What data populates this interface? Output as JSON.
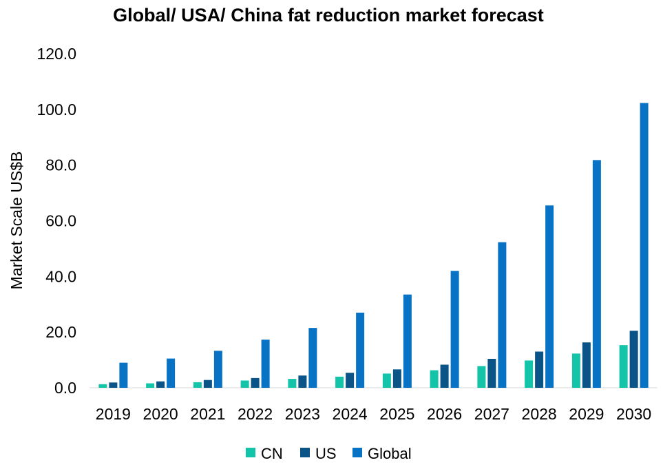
{
  "chart_data": {
    "type": "bar",
    "title": "Global/ USA/ China fat reduction market forecast",
    "xlabel": "",
    "ylabel": "Market Scale US$B",
    "ylim": [
      0,
      120
    ],
    "yticks": [
      "0.0",
      "20.0",
      "40.0",
      "60.0",
      "80.0",
      "100.0",
      "120.0"
    ],
    "grid": false,
    "legend_position": "bottom",
    "categories": [
      "2019",
      "2020",
      "2021",
      "2022",
      "2023",
      "2024",
      "2025",
      "2026",
      "2027",
      "2028",
      "2029",
      "2030"
    ],
    "series": [
      {
        "name": "CN",
        "color": "#13C4A9",
        "values": [
          1.3,
          1.6,
          2.0,
          2.6,
          3.2,
          4.0,
          5.1,
          6.3,
          7.8,
          9.8,
          12.3,
          15.3
        ]
      },
      {
        "name": "US",
        "color": "#0A5487",
        "values": [
          1.9,
          2.3,
          2.8,
          3.5,
          4.4,
          5.4,
          6.6,
          8.3,
          10.4,
          13.0,
          16.3,
          20.5
        ]
      },
      {
        "name": "Global",
        "color": "#0873C4",
        "values": [
          9.0,
          10.5,
          13.3,
          17.3,
          21.5,
          27.0,
          33.5,
          42.0,
          52.3,
          65.5,
          81.8,
          102.3
        ]
      }
    ]
  }
}
